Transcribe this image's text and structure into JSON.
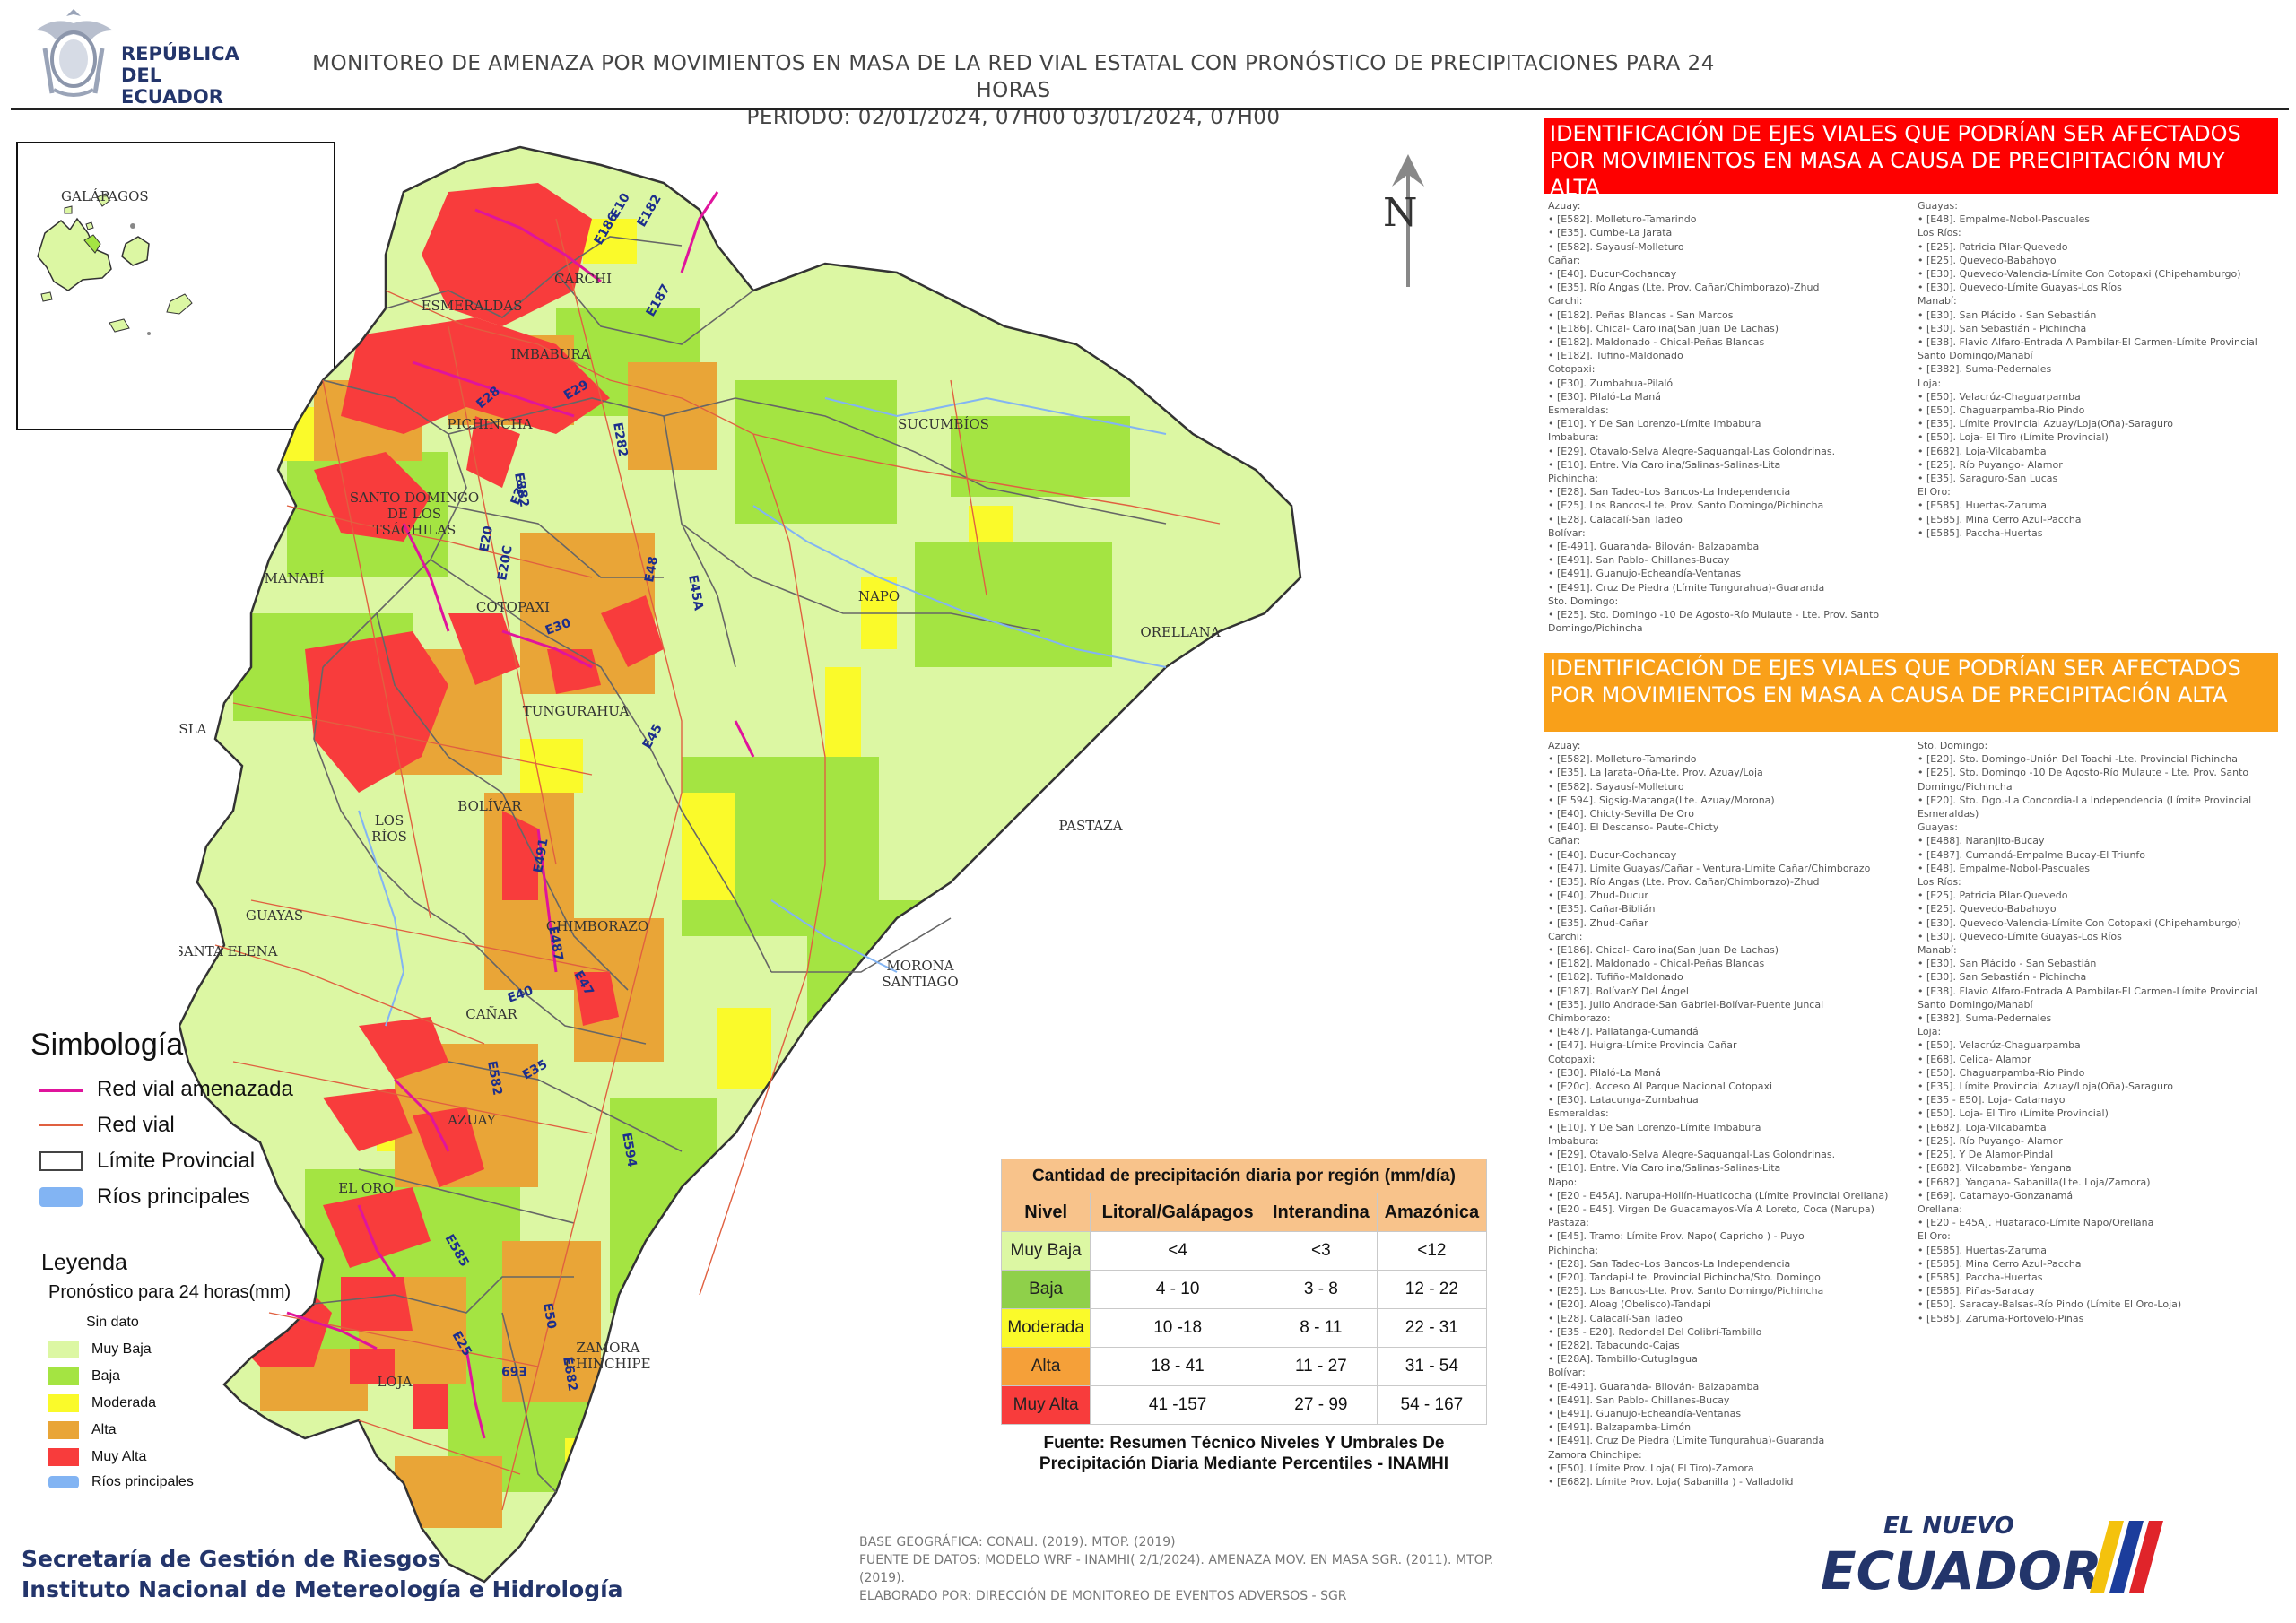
{
  "header": {
    "gov_line1": "REPÚBLICA",
    "gov_line2": "DEL ECUADOR",
    "title_line1": "MONITOREO DE AMENAZA POR MOVIMIENTOS EN MASA DE LA RED VIAL  ESTATAL  CON PRONÓSTICO  DE  PRECIPITACIONES PARA 24 HORAS",
    "title_line2": "PERIODO: 02/01/2024, 07H00 03/01/2024, 07H00"
  },
  "inset": {
    "label": "GALÁPAGOS"
  },
  "north_label": "N",
  "provinces": [
    "ESMERALDAS",
    "CARCHI",
    "IMBABURA",
    "PICHINCHA",
    "SUCUMBÍOS",
    "SANTO DOMINGO",
    "DE LOS",
    "TSÁCHILAS",
    "MANABÍ",
    "NAPO",
    "COTOPAXI",
    "ORELLANA",
    "TUNGURAHUA",
    "ISLA",
    "BOLÍVAR",
    "LOS",
    "RÍOS",
    "PASTAZA",
    "GUAYAS",
    "CHIMBORAZO",
    "SANTA ELENA",
    "MORONA",
    "SANTIAGO",
    "CAÑAR",
    "AZUAY",
    "EL ORO",
    "LOJA",
    "ZAMORA",
    "CHINCHIPE"
  ],
  "roads": [
    "E10",
    "E182",
    "E186",
    "E187",
    "E29",
    "E28",
    "E282",
    "E382",
    "E38",
    "E30",
    "E20",
    "E20C",
    "E45",
    "E45A",
    "E48",
    "E491",
    "E487",
    "E47",
    "E40",
    "E35",
    "E582",
    "E594",
    "E585",
    "E50",
    "E682",
    "E69",
    "E25"
  ],
  "red_box": {
    "title": "IDENTIFICACIÓN DE EJES VIALES QUE PODRÍAN SER AFECTADOS POR MOVIMIENTOS EN MASA A CAUSA DE PRECIPITACIÓN MUY ALTA",
    "col1": [
      "Azuay:",
      "• [E582]. Molleturo-Tamarindo",
      "• [E35]. Cumbe-La Jarata",
      "• [E582]. Sayausí-Molleturo",
      "Cañar:",
      "• [E40]. Ducur-Cochancay",
      "• [E35]. Río Angas (Lte. Prov. Cañar/Chimborazo)-Zhud",
      "Carchi:",
      "• [E182]. Peñas Blancas - San Marcos",
      "• [E186]. Chical- Carolina(San Juan De Lachas)",
      "• [E182]. Maldonado - Chical-Peñas Blancas",
      "• [E182]. Tufiño-Maldonado",
      "Cotopaxi:",
      "• [E30]. Zumbahua-Pilaló",
      "• [E30]. Pilaló-La Maná",
      "Esmeraldas:",
      "• [E10]. Y De San Lorenzo-Límite Imbabura",
      "Imbabura:",
      "• [E29]. Otavalo-Selva Alegre-Saguangal-Las Golondrinas.",
      "• [E10]. Entre. Vía Carolina/Salinas-Salinas-Lita",
      "Pichincha:",
      "• [E28]. San Tadeo-Los Bancos-La Independencia",
      "• [E25]. Los Bancos-Lte. Prov. Santo Domingo/Pichincha",
      "• [E28]. Calacalí-San Tadeo",
      "Bolívar:",
      "• [E-491]. Guaranda- Bilován- Balzapamba",
      "• [E491]. San Pablo- Chillanes-Bucay",
      "• [E491]. Guanujo-Echeandía-Ventanas",
      "• [E491]. Cruz De Piedra (Límite Tungurahua)-Guaranda",
      "Sto. Domingo:",
      "• [E25]. Sto. Domingo -10 De Agosto-Río Mulaute - Lte. Prov. Santo",
      "Domingo/Pichincha"
    ],
    "col2": [
      "Guayas:",
      "• [E48]. Empalme-Nobol-Pascuales",
      "Los Ríos:",
      "• [E25]. Patricia Pilar-Quevedo",
      "• [E25]. Quevedo-Babahoyo",
      "• [E30]. Quevedo-Valencia-Límite Con Cotopaxi (Chipehamburgo)",
      "• [E30]. Quevedo-Límite Guayas-Los Ríos",
      "Manabí:",
      "• [E30]. San Plácido - San Sebastián",
      "• [E30]. San Sebastián - Pichincha",
      "• [E38]. Flavio Alfaro-Entrada A Pambilar-El Carmen-Límite Provincial",
      "Santo Domingo/Manabí",
      "• [E382]. Suma-Pedernales",
      "Loja:",
      "• [E50]. Velacrúz-Chaguarpamba",
      "• [E50]. Chaguarpamba-Río Pindo",
      "• [E35]. Límite Provincial Azuay/Loja(Oña)-Saraguro",
      "• [E50]. Loja- El Tiro (Límite Provincial)",
      "• [E682]. Loja-Vilcabamba",
      "• [E25]. Río Puyango- Alamor",
      "• [E35]. Saraguro-San Lucas",
      "El Oro:",
      "• [E585]. Huertas-Zaruma",
      "• [E585]. Mina Cerro Azul-Paccha",
      "• [E585]. Paccha-Huertas"
    ]
  },
  "orange_box": {
    "title": "IDENTIFICACIÓN DE EJES VIALES QUE PODRÍAN SER AFECTADOS POR MOVIMIENTOS EN MASA A CAUSA DE PRECIPITACIÓN  ALTA",
    "col1": [
      "Azuay:",
      "• [E582]. Molleturo-Tamarindo",
      "• [E35]. La Jarata-Oña-Lte. Prov. Azuay/Loja",
      "• [E582]. Sayausí-Molleturo",
      "• [E 594]. Sigsig-Matanga(Lte. Azuay/Morona)",
      "• [E40]. Chicty-Sevilla De Oro",
      "• [E40]. El Descanso- Paute-Chicty",
      "Cañar:",
      "• [E40]. Ducur-Cochancay",
      "• [E47]. Límite Guayas/Cañar - Ventura-Límite Cañar/Chimborazo",
      "• [E35]. Río Angas (Lte. Prov. Cañar/Chimborazo)-Zhud",
      "• [E40]. Zhud-Ducur",
      "• [E35]. Cañar-Biblián",
      "• [E35]. Zhud-Cañar",
      "Carchi:",
      "• [E186]. Chical- Carolina(San Juan De Lachas)",
      "• [E182]. Maldonado - Chical-Peñas Blancas",
      "• [E182]. Tufiño-Maldonado",
      "• [E187]. Bolívar-Y Del Ángel",
      "• [E35]. Julio Andrade-San Gabriel-Bolívar-Puente Juncal",
      "Chimborazo:",
      "• [E487]. Pallatanga-Cumandá",
      "• [E47]. Huigra-Límite Provincia Cañar",
      "Cotopaxi:",
      "• [E30]. Pilaló-La Maná",
      "• [E20c]. Acceso Al Parque Nacional Cotopaxi",
      "• [E30]. Latacunga-Zumbahua",
      "Esmeraldas:",
      "• [E10]. Y De San Lorenzo-Límite Imbabura",
      "Imbabura:",
      "• [E29]. Otavalo-Selva Alegre-Saguangal-Las Golondrinas.",
      "• [E10]. Entre. Vía Carolina/Salinas-Salinas-Lita",
      "Napo:",
      "• [E20 - E45A]. Narupa-Hollín-Huaticocha (Límite Provincial Orellana)",
      "• [E20 - E45]. Virgen De Guacamayos-Vía A Loreto, Coca (Narupa)",
      "Pastaza:",
      "• [E45]. Tramo: Límite Prov. Napo( Capricho ) - Puyo",
      "Pichincha:",
      "• [E28]. San Tadeo-Los Bancos-La Independencia",
      "• [E20]. Tandapi-Lte. Provincial Pichincha/Sto. Domingo",
      "• [E25]. Los Bancos-Lte. Prov. Santo Domingo/Pichincha",
      "• [E20]. Aloag (Obelisco)-Tandapi",
      "• [E28]. Calacalí-San Tadeo",
      "• [E35 - E20]. Redondel Del Colibrí-Tambillo",
      "• [E282]. Tabacundo-Cajas",
      "• [E28A]. Tambillo-Cutuglagua",
      "Bolívar:",
      "• [E-491]. Guaranda- Bilován- Balzapamba",
      "• [E491]. San Pablo- Chillanes-Bucay",
      "• [E491]. Guanujo-Echeandía-Ventanas",
      "• [E491]. Balzapamba-Limón",
      "• [E491]. Cruz De Piedra (Límite Tungurahua)-Guaranda",
      "Zamora Chinchipe:",
      "• [E50]. Límite Prov. Loja( El Tiro)-Zamora",
      "• [E682]. Límite Prov.  Loja( Sabanilla ) - Valladolid"
    ],
    "col2": [
      "Sto. Domingo:",
      "• [E20]. Sto. Domingo-Unión Del Toachi -Lte. Provincial Pichincha",
      "• [E25]. Sto. Domingo -10 De Agosto-Río Mulaute - Lte. Prov. Santo",
      "Domingo/Pichincha",
      "• [E20]. Sto. Dgo.-La Concordia-La Independencia (Límite Provincial",
      "Esmeraldas)",
      "Guayas:",
      "• [E488]. Naranjito-Bucay",
      "• [E487]. Cumandá-Empalme Bucay-El Triunfo",
      "• [E48]. Empalme-Nobol-Pascuales",
      "Los Ríos:",
      "• [E25]. Patricia Pilar-Quevedo",
      "• [E25]. Quevedo-Babahoyo",
      "• [E30]. Quevedo-Valencia-Límite Con Cotopaxi (Chipehamburgo)",
      "• [E30]. Quevedo-Límite Guayas-Los Ríos",
      "Manabí:",
      "• [E30]. San Plácido - San Sebastián",
      "• [E30]. San Sebastián - Pichincha",
      "• [E38]. Flavio Alfaro-Entrada A Pambilar-El Carmen-Límite Provincial",
      "Santo Domingo/Manabí",
      "• [E382]. Suma-Pedernales",
      "Loja:",
      "• [E50]. Velacrúz-Chaguarpamba",
      "• [E68]. Celica- Alamor",
      "• [E50]. Chaguarpamba-Río Pindo",
      "• [E35]. Límite Provincial Azuay/Loja(Oña)-Saraguro",
      "• [E35 - E50]. Loja- Catamayo",
      "• [E50]. Loja- El Tiro (Límite Provincial)",
      "• [E682]. Loja-Vilcabamba",
      "• [E25]. Río Puyango- Alamor",
      "• [E25]. Y De Alamor-Pindal",
      "• [E682]. Vilcabamba- Yangana",
      "• [E682]. Yangana- Sabanilla(Lte. Loja/Zamora)",
      "• [E69]. Catamayo-Gonzanamá",
      "Orellana:",
      "• [E20 - E45A]. Huataraco-Límite Napo/Orellana",
      "El Oro:",
      "• [E585]. Huertas-Zaruma",
      "• [E585]. Mina Cerro Azul-Paccha",
      "• [E585]. Paccha-Huertas",
      "• [E585]. Piñas-Saracay",
      "• [E50]. Saracay-Balsas-Río Pindo (Límite El Oro-Loja)",
      "• [E585]. Zaruma-Portovelo-Piñas"
    ]
  },
  "simbologia": {
    "title": "Simbología",
    "items": [
      "Red vial amenazada",
      "Red vial",
      "Límite Provincial",
      "Ríos principales"
    ]
  },
  "leyenda": {
    "title": "Leyenda",
    "subtitle": "Pronóstico para 24 horas(mm)",
    "items": [
      "Sin dato",
      "Muy Baja",
      "Baja",
      "Moderada",
      "Alta",
      "Muy Alta",
      "Ríos principales"
    ]
  },
  "colors": {
    "muy_baja": "#dcf7a3",
    "baja": "#a4e442",
    "moderada": "#fafa2a",
    "alta": "#e9a537",
    "muy_alta": "#f83c3c",
    "rios": "#82b4f3",
    "red_vial_amenazada": "#e0149c",
    "red_vial": "#e06040"
  },
  "precip_table": {
    "caption": "Cantidad de precipitación diaria por región (mm/día)",
    "headers": [
      "Nivel",
      "Litoral/Galápagos",
      "Interandina",
      "Amazónica"
    ],
    "rows": [
      {
        "nivel": "Muy Baja",
        "litoral": "<4",
        "interandina": "<3",
        "amazonica": "<12"
      },
      {
        "nivel": "Baja",
        "litoral": "4 - 10",
        "interandina": "3 - 8",
        "amazonica": "12 - 22"
      },
      {
        "nivel": "Moderada",
        "litoral": "10 -18",
        "interandina": "8 - 11",
        "amazonica": "22 - 31"
      },
      {
        "nivel": "Alta",
        "litoral": "18 - 41",
        "interandina": "11 - 27",
        "amazonica": "31 - 54"
      },
      {
        "nivel": "Muy Alta",
        "litoral": "41 -157",
        "interandina": "27 - 99",
        "amazonica": "54 - 167"
      }
    ],
    "source": "Fuente: Resumen Técnico Niveles Y Umbrales De Precipitación Diaria Mediante Percentiles - INAMHI"
  },
  "footer": {
    "agency1": "Secretaría de Gestión de Riesgos",
    "agency2": "Instituto Nacional de Metereología e Hidrología",
    "credit1": "BASE GEOGRÁFICA: CONALI. (2019). MTOP. (2019)",
    "credit2": "FUENTE DE DATOS: MODELO WRF - INAMHI( 2/1/2024).  AMENAZA MOV. EN MASA SGR. (2011). MTOP. (2019).",
    "credit3": "ELABORADO POR: DIRECCIÓN DE MONITOREO DE EVENTOS ADVERSOS - SGR",
    "brand_top": "EL NUEVO",
    "brand_main": "ECUADOR"
  }
}
